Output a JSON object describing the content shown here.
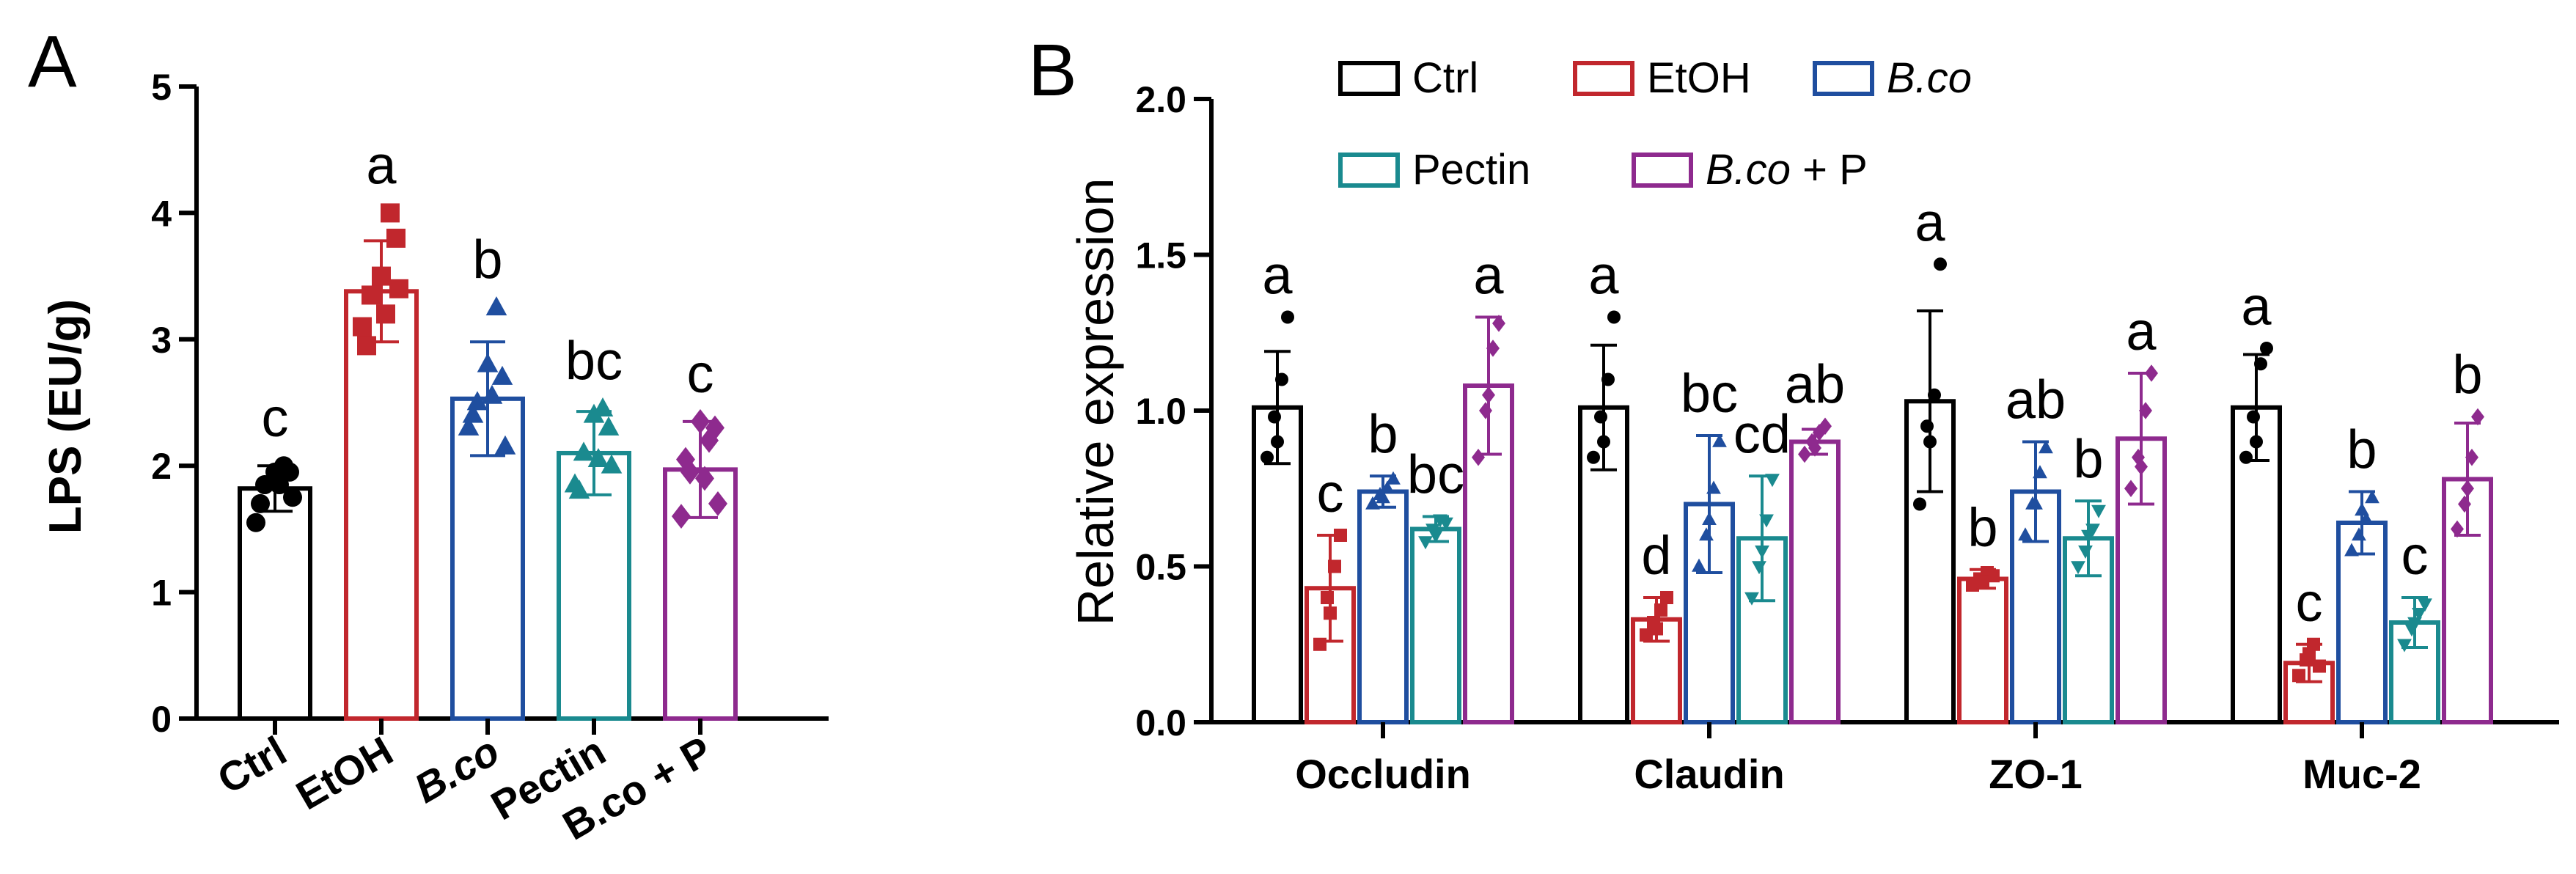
{
  "panel_labels": {
    "a": "A",
    "b": "B"
  },
  "chart_data": [
    {
      "type": "bar",
      "panel": "A",
      "ylabel": "LPS (EU/g)",
      "ylim": [
        0,
        5
      ],
      "yticks": [
        "0",
        "1",
        "2",
        "3",
        "4",
        "5"
      ],
      "categories": [
        {
          "label": "Ctrl",
          "italic": false
        },
        {
          "label": "EtOH",
          "italic": false
        },
        {
          "label": "B.co",
          "italic": true
        },
        {
          "label": "Pectin",
          "italic": false
        },
        {
          "label": "B.co + P",
          "italic": false
        }
      ],
      "colors": [
        "#000000",
        "#c1272d",
        "#1f4e9f",
        "#1a8a8f",
        "#8e2a8e"
      ],
      "markers": [
        "circle",
        "square",
        "triangle",
        "triangle",
        "diamond"
      ],
      "means": [
        1.82,
        3.38,
        2.53,
        2.1,
        1.97
      ],
      "errors": [
        0.18,
        0.4,
        0.45,
        0.33,
        0.38
      ],
      "significance": [
        "c",
        "a",
        "b",
        "bc",
        "c"
      ],
      "points": [
        [
          1.55,
          1.85,
          1.95,
          2.0,
          1.75,
          1.7,
          1.95,
          1.85
        ],
        [
          3.1,
          3.35,
          3.5,
          4.0,
          3.4,
          2.95,
          3.8,
          3.2
        ],
        [
          2.3,
          2.5,
          2.8,
          3.25,
          2.15,
          2.4,
          2.7,
          2.55
        ],
        [
          1.85,
          2.1,
          2.4,
          2.45,
          2.0,
          1.8,
          2.3,
          2.05
        ],
        [
          1.6,
          1.95,
          2.35,
          2.2,
          1.7,
          2.05,
          2.3,
          1.9
        ]
      ]
    },
    {
      "type": "bar",
      "panel": "B",
      "ylabel": "Relative expression",
      "ylim": [
        0,
        2
      ],
      "yticks": [
        "0.0",
        "0.5",
        "1.0",
        "1.5",
        "2.0"
      ],
      "categories": [
        "Occludin",
        "Claudin",
        "ZO-1",
        "Muc-2"
      ],
      "series": [
        {
          "name": "Ctrl",
          "italic_part": "",
          "rest": "Ctrl",
          "color": "#000000",
          "marker": "circle",
          "values": [
            1.01,
            1.01,
            1.03,
            1.01
          ],
          "errors": [
            0.18,
            0.2,
            0.29,
            0.17
          ],
          "significance": [
            "a",
            "a",
            "a",
            "a"
          ],
          "points": [
            [
              0.85,
              0.98,
              1.1,
              1.3,
              0.9
            ],
            [
              0.85,
              0.98,
              1.1,
              1.3,
              0.9
            ],
            [
              0.7,
              0.95,
              1.05,
              1.47,
              0.9
            ],
            [
              0.85,
              0.98,
              1.15,
              1.2,
              0.9
            ]
          ]
        },
        {
          "name": "EtOH",
          "italic_part": "",
          "rest": "EtOH",
          "color": "#c1272d",
          "marker": "square",
          "values": [
            0.43,
            0.33,
            0.46,
            0.19
          ],
          "errors": [
            0.17,
            0.07,
            0.03,
            0.06
          ],
          "significance": [
            "c",
            "d",
            "b",
            "c"
          ],
          "points": [
            [
              0.25,
              0.4,
              0.5,
              0.6,
              0.35
            ],
            [
              0.28,
              0.32,
              0.36,
              0.4,
              0.3
            ],
            [
              0.44,
              0.46,
              0.48,
              0.47,
              0.45
            ],
            [
              0.15,
              0.2,
              0.25,
              0.18,
              0.22
            ]
          ]
        },
        {
          "name": "B.co",
          "italic_part": "B.co",
          "rest": "",
          "color": "#1f4e9f",
          "marker": "triangle",
          "values": [
            0.74,
            0.7,
            0.74,
            0.64
          ],
          "errors": [
            0.05,
            0.22,
            0.16,
            0.1
          ],
          "significance": [
            "b",
            "bc",
            "ab",
            "b"
          ],
          "points": [
            [
              0.7,
              0.73,
              0.75,
              0.78,
              0.72
            ],
            [
              0.5,
              0.6,
              0.75,
              0.9,
              0.65
            ],
            [
              0.6,
              0.7,
              0.8,
              0.88,
              0.7
            ],
            [
              0.55,
              0.6,
              0.65,
              0.72,
              0.68
            ]
          ]
        },
        {
          "name": "Pectin",
          "italic_part": "",
          "rest": "Pectin",
          "color": "#1a8a8f",
          "marker": "triangle-down",
          "values": [
            0.62,
            0.59,
            0.59,
            0.32
          ],
          "errors": [
            0.04,
            0.2,
            0.12,
            0.08
          ],
          "significance": [
            "bc",
            "cd",
            "b",
            "c"
          ],
          "points": [
            [
              0.58,
              0.62,
              0.65,
              0.64,
              0.6
            ],
            [
              0.4,
              0.5,
              0.65,
              0.78,
              0.55
            ],
            [
              0.5,
              0.55,
              0.62,
              0.68,
              0.6
            ],
            [
              0.25,
              0.3,
              0.35,
              0.38,
              0.32
            ]
          ]
        },
        {
          "name": "B.co + P",
          "italic_part": "B.co",
          "rest": " + P",
          "color": "#8e2a8e",
          "marker": "diamond",
          "values": [
            1.08,
            0.9,
            0.91,
            0.78
          ],
          "errors": [
            0.22,
            0.04,
            0.21,
            0.18
          ],
          "significance": [
            "a",
            "ab",
            "a",
            "b"
          ],
          "points": [
            [
              0.85,
              1.0,
              1.2,
              1.28,
              1.05
            ],
            [
              0.86,
              0.9,
              0.93,
              0.95,
              0.88
            ],
            [
              0.75,
              0.85,
              1.0,
              1.12,
              0.82
            ],
            [
              0.62,
              0.7,
              0.85,
              0.98,
              0.75
            ]
          ]
        }
      ]
    }
  ]
}
